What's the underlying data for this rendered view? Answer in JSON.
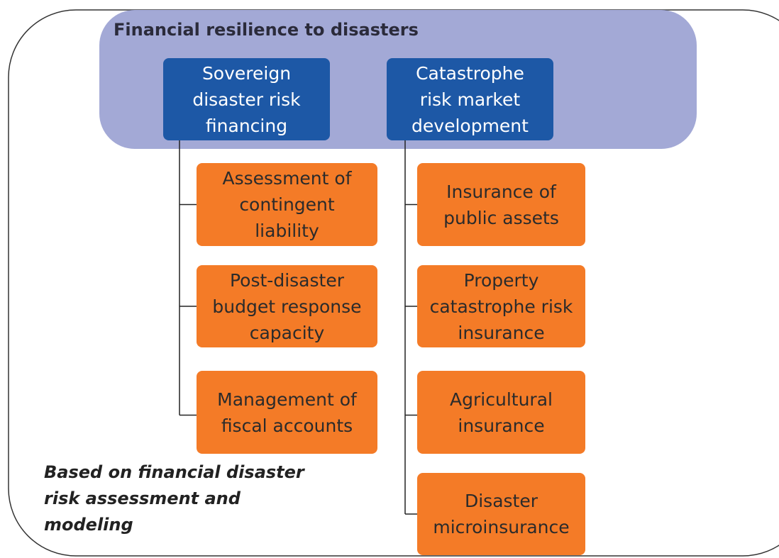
{
  "title": "Financial resilience to disasters",
  "branches": [
    {
      "label": [
        "Sovereign",
        "disaster risk",
        "financing"
      ],
      "children": [
        [
          "Assessment of",
          "contingent",
          "liability"
        ],
        [
          "Post-disaster",
          "budget response",
          "capacity"
        ],
        [
          "Management of",
          "fiscal accounts"
        ]
      ]
    },
    {
      "label": [
        "Catastrophe",
        "risk market",
        "development"
      ],
      "children": [
        [
          "Insurance of",
          "public assets"
        ],
        [
          "Property",
          "catastrophe risk",
          "insurance"
        ],
        [
          "Agricultural",
          "insurance"
        ],
        [
          "Disaster",
          "microinsurance"
        ]
      ]
    }
  ],
  "footnote": [
    "Based on financial disaster",
    "risk assessment and",
    "modeling"
  ]
}
